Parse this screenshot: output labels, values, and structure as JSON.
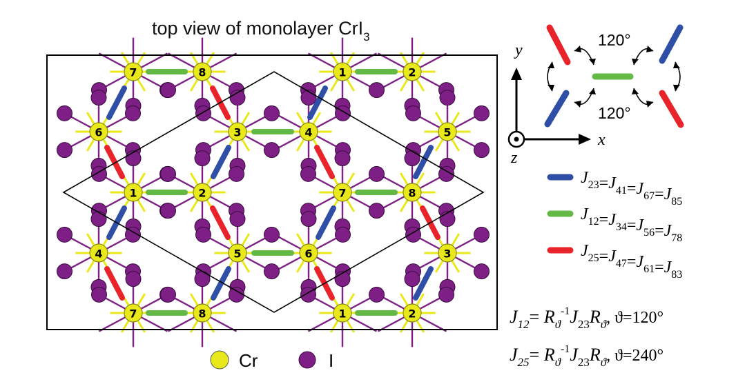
{
  "title": {
    "text": "top view of monolayer CrI",
    "subscript": "3"
  },
  "atom_labels": {
    "row_top": [
      "7",
      "8",
      "1",
      "2"
    ],
    "row_upper": [
      "6",
      "3",
      "4",
      "5"
    ],
    "row_middle": [
      "1",
      "2",
      "7",
      "8"
    ],
    "row_lower": [
      "4",
      "5",
      "6",
      "3"
    ],
    "row_bottom": [
      "7",
      "8",
      "1",
      "2"
    ]
  },
  "legend": {
    "cr": "Cr",
    "i": "I"
  },
  "axes": {
    "x": "x",
    "y": "y",
    "z": "z",
    "angle_top": "120°",
    "angle_bottom": "120°"
  },
  "bond_legend": [
    {
      "color": "#2f4fa6",
      "J": "J",
      "subs": [
        "23",
        "41",
        "67",
        "85"
      ]
    },
    {
      "color": "#63b846",
      "J": "J",
      "subs": [
        "12",
        "34",
        "56",
        "78"
      ]
    },
    {
      "color": "#e8232a",
      "J": "J",
      "subs": [
        "25",
        "47",
        "61",
        "83"
      ]
    }
  ],
  "equations": [
    {
      "lhs_sub": "12",
      "theta": "120°"
    },
    {
      "lhs_sub": "25",
      "theta": "240°"
    }
  ],
  "equation_parts": {
    "J": "J",
    "R": "R",
    "inv": "-1",
    "rsub": "ϑ",
    "sub23": "23",
    "theta_eq": ", ϑ="
  },
  "colors": {
    "cr": "#e8e81a",
    "i": "#7d1f85",
    "bond_blue": "#2f4fa6",
    "bond_green": "#63b846",
    "bond_red": "#e8232a"
  }
}
